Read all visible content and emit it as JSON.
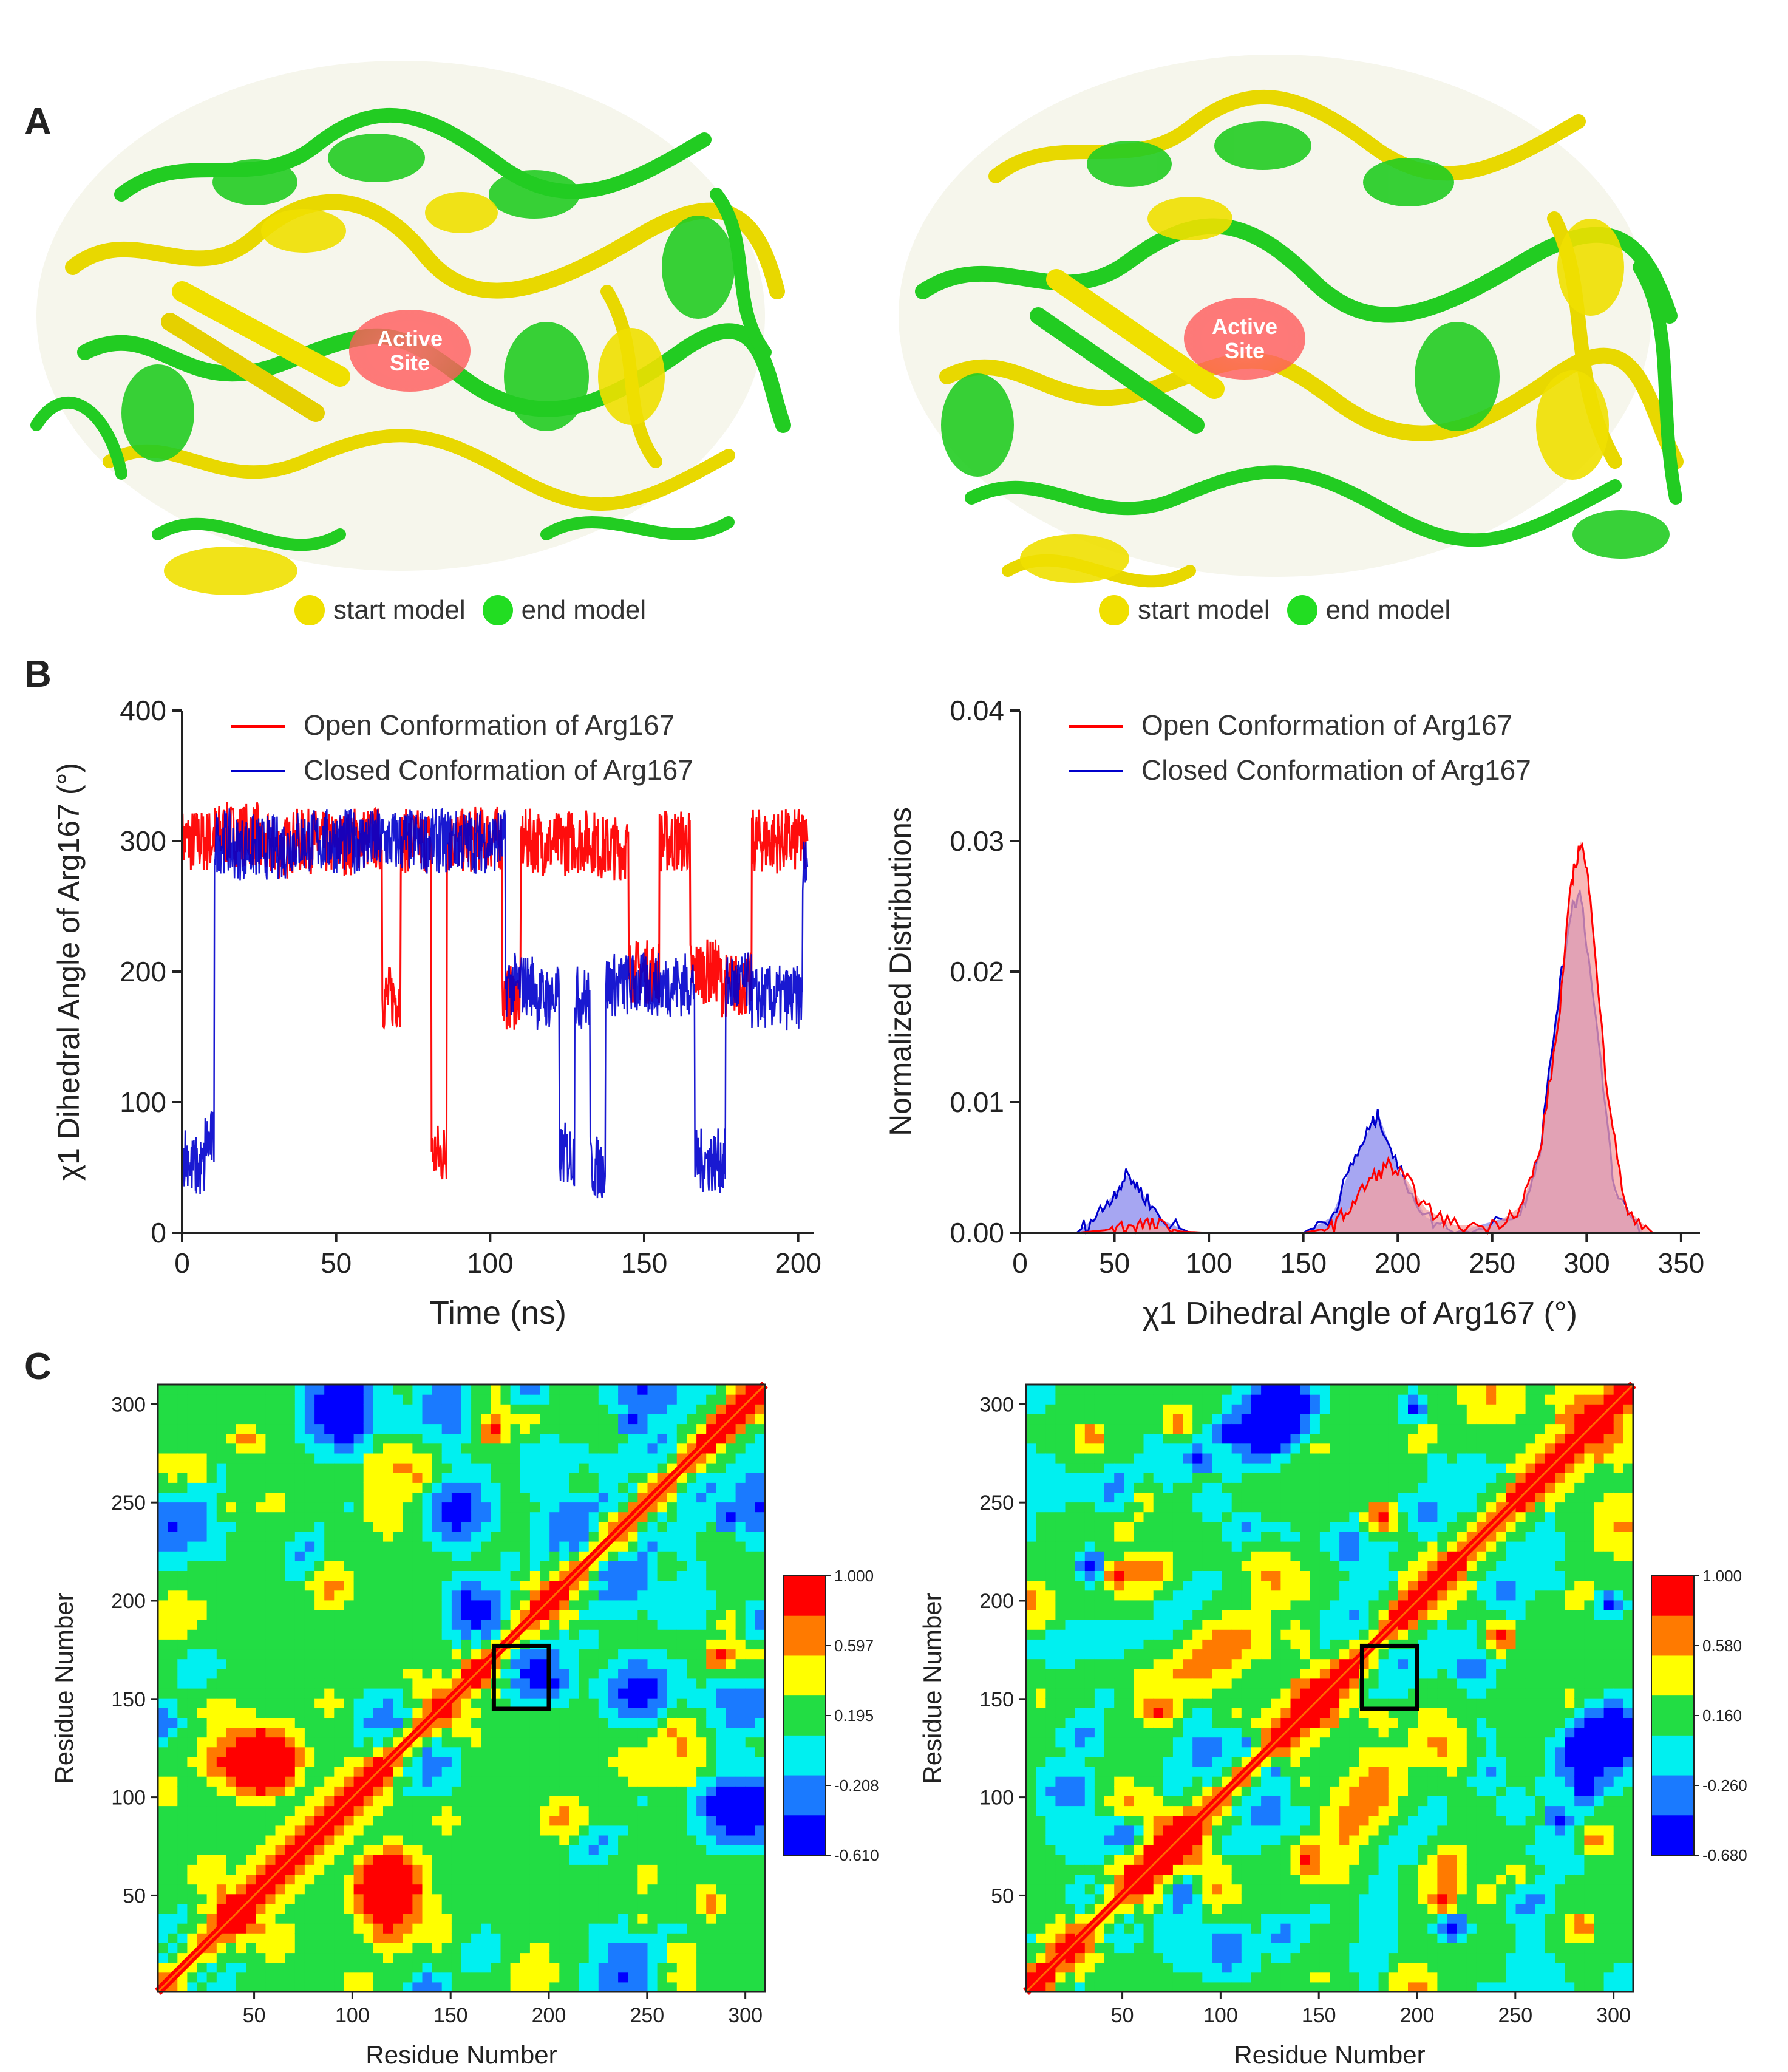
{
  "panels": {
    "a_label": "A",
    "b_label": "B",
    "c_label": "C"
  },
  "panel_a": {
    "left": {
      "active_site_line1": "Active",
      "active_site_line2": "Site",
      "legend_start": "start model",
      "legend_end": "end model"
    },
    "right": {
      "active_site_line1": "Active",
      "active_site_line2": "Site",
      "legend_start": "start model",
      "legend_end": "end model"
    },
    "colors": {
      "start": "#f0e000",
      "end": "#22cc22",
      "active_site": "#ff6b6b"
    }
  },
  "chart_data": [
    {
      "id": "b_left",
      "type": "line",
      "title": "",
      "xlabel": "Time (ns)",
      "ylabel": "χ1 Dihedral Angle of Arg167 (°)",
      "xlim": [
        0,
        205
      ],
      "ylim": [
        0,
        400
      ],
      "xticks": [
        0,
        50,
        100,
        150,
        200
      ],
      "yticks": [
        0,
        100,
        200,
        300,
        400
      ],
      "legend": [
        "Open Conformation of Arg167",
        "Closed Conformation of Arg167"
      ],
      "series": [
        {
          "name": "Open Conformation of Arg167",
          "color": "#ff0000",
          "x": [
            0,
            20,
            30,
            40,
            50,
            60,
            70,
            72,
            80,
            82,
            90,
            100,
            108,
            112,
            120,
            130,
            140,
            150,
            160,
            170,
            180,
            190,
            200,
            203
          ],
          "y": [
            300,
            305,
            295,
            300,
            298,
            302,
            180,
            300,
            300,
            60,
            300,
            302,
            180,
            300,
            298,
            300,
            295,
            200,
            300,
            200,
            190,
            300,
            300,
            300
          ]
        },
        {
          "name": "Closed Conformation of Arg167",
          "color": "#0000cc",
          "x": [
            0,
            5,
            10,
            11,
            20,
            50,
            100,
            110,
            120,
            125,
            130,
            135,
            140,
            150,
            160,
            173,
            180,
            190,
            200,
            203
          ],
          "y": [
            60,
            50,
            70,
            300,
            295,
            300,
            300,
            190,
            180,
            60,
            180,
            50,
            190,
            190,
            190,
            55,
            190,
            180,
            180,
            280
          ]
        }
      ]
    },
    {
      "id": "b_right",
      "type": "area",
      "title": "",
      "xlabel": "χ1 Dihedral Angle of Arg167 (°)",
      "ylabel": "Normalized Distributions",
      "xlim": [
        0,
        360
      ],
      "ylim": [
        0,
        0.04
      ],
      "xticks": [
        0,
        50,
        100,
        150,
        200,
        250,
        300,
        350
      ],
      "yticks": [
        0.0,
        0.01,
        0.02,
        0.03,
        0.04
      ],
      "ytick_labels": [
        "0.00",
        "0.01",
        "0.02",
        "0.03",
        "0.04"
      ],
      "legend": [
        "Open Conformation of Arg167",
        "Closed Conformation of Arg167"
      ],
      "series": [
        {
          "name": "Open Conformation of Arg167",
          "color": "#ff0000",
          "fill": "#f5a0a0",
          "x": [
            0,
            30,
            45,
            55,
            65,
            75,
            85,
            100,
            150,
            165,
            175,
            185,
            195,
            205,
            215,
            230,
            250,
            265,
            275,
            285,
            292,
            297,
            302,
            310,
            320,
            335,
            360
          ],
          "y": [
            0,
            0,
            0.0002,
            0.0005,
            0.0007,
            0.0005,
            0.0001,
            0,
            0,
            0.0004,
            0.002,
            0.004,
            0.0052,
            0.004,
            0.0018,
            0.0006,
            0.0005,
            0.002,
            0.006,
            0.016,
            0.027,
            0.03,
            0.026,
            0.012,
            0.002,
            0,
            0
          ]
        },
        {
          "name": "Closed Conformation of Arg167",
          "color": "#0000cc",
          "fill": "#8888ee",
          "x": [
            0,
            30,
            40,
            50,
            57,
            65,
            75,
            90,
            150,
            165,
            175,
            185,
            190,
            200,
            215,
            230,
            265,
            275,
            285,
            292,
            297,
            305,
            315,
            330,
            360
          ],
          "y": [
            0,
            0,
            0.0012,
            0.003,
            0.0045,
            0.003,
            0.001,
            0,
            0,
            0.0012,
            0.005,
            0.008,
            0.009,
            0.005,
            0.0012,
            0,
            0.0015,
            0.006,
            0.018,
            0.025,
            0.026,
            0.016,
            0.003,
            0,
            0
          ]
        }
      ]
    },
    {
      "id": "c_left",
      "type": "heatmap",
      "title": "",
      "xlabel": "Residue Number",
      "ylabel": "Residue Number",
      "xlim": [
        1,
        310
      ],
      "ylim": [
        1,
        310
      ],
      "xticks": [
        50,
        100,
        150,
        200,
        250,
        300
      ],
      "yticks": [
        50,
        100,
        150,
        200,
        250,
        300
      ],
      "colorbar_labels": [
        "1.000",
        "0.597",
        "0.195",
        "-0.208",
        "-0.610"
      ],
      "highlight_box": {
        "x": [
          172,
          200
        ],
        "y": [
          145,
          177
        ]
      }
    },
    {
      "id": "c_right",
      "type": "heatmap",
      "title": "",
      "xlabel": "Residue Number",
      "ylabel": "Residue Number",
      "xlim": [
        1,
        310
      ],
      "ylim": [
        1,
        310
      ],
      "xticks": [
        50,
        100,
        150,
        200,
        250,
        300
      ],
      "yticks": [
        50,
        100,
        150,
        200,
        250,
        300
      ],
      "colorbar_labels": [
        "1.000",
        "0.580",
        "0.160",
        "-0.260",
        "-0.680"
      ],
      "highlight_box": {
        "x": [
          172,
          200
        ],
        "y": [
          145,
          177
        ]
      }
    }
  ],
  "colormap": [
    "#ff0000",
    "#ff7a00",
    "#ffff00",
    "#22dd44",
    "#00f0f0",
    "#1a7aff",
    "#0000ff"
  ]
}
